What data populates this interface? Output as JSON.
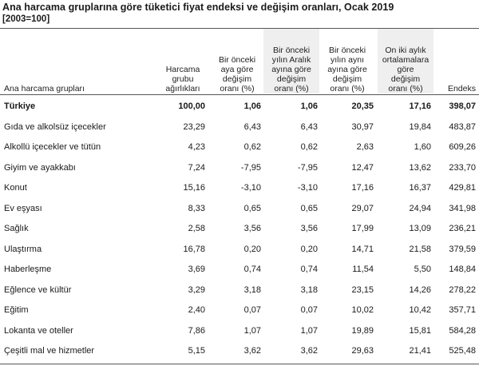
{
  "title": "Ana harcama gruplarına göre tüketici fiyat endeksi ve değişim oranları, Ocak 2019",
  "subtitle": "[2003=100]",
  "columns": [
    {
      "lines": [
        "Ana harcama grupları"
      ]
    },
    {
      "lines": [
        "Harcama",
        "grubu",
        "ağırlıkları"
      ]
    },
    {
      "lines": [
        "Bir önceki",
        "aya göre",
        "değişim",
        "oranı (%)"
      ]
    },
    {
      "lines": [
        "Bir önceki",
        "yılın Aralık",
        "ayına göre",
        "değişim",
        "oranı (%)"
      ]
    },
    {
      "lines": [
        "Bir önceki",
        "yılın aynı",
        "ayına göre",
        "değişim",
        "oranı (%)"
      ]
    },
    {
      "lines": [
        "On iki aylık",
        "ortalamalara",
        "göre",
        "değişim",
        "oranı (%)"
      ]
    },
    {
      "lines": [
        "Endeks"
      ]
    }
  ],
  "rows": [
    {
      "name": "Türkiye",
      "bold": true,
      "values": [
        "100,00",
        "1,06",
        "1,06",
        "20,35",
        "17,16",
        "398,07"
      ]
    },
    {
      "name": "Gıda ve alkolsüz içecekler",
      "values": [
        "23,29",
        "6,43",
        "6,43",
        "30,97",
        "19,84",
        "483,87"
      ]
    },
    {
      "name": "Alkollü içecekler ve tütün",
      "values": [
        "4,23",
        "0,62",
        "0,62",
        "2,63",
        "1,60",
        "609,26"
      ]
    },
    {
      "name": "Giyim ve ayakkabı",
      "values": [
        "7,24",
        "-7,95",
        "-7,95",
        "12,47",
        "13,62",
        "233,70"
      ]
    },
    {
      "name": "Konut",
      "values": [
        "15,16",
        "-3,10",
        "-3,10",
        "17,16",
        "16,37",
        "429,81"
      ]
    },
    {
      "name": "Ev eşyası",
      "values": [
        "8,33",
        "0,65",
        "0,65",
        "29,07",
        "24,94",
        "341,98"
      ]
    },
    {
      "name": "Sağlık",
      "values": [
        "2,58",
        "3,56",
        "3,56",
        "17,99",
        "13,09",
        "236,21"
      ]
    },
    {
      "name": "Ulaştırma",
      "values": [
        "16,78",
        "0,20",
        "0,20",
        "14,71",
        "21,58",
        "379,59"
      ]
    },
    {
      "name": "Haberleşme",
      "values": [
        "3,69",
        "0,74",
        "0,74",
        "11,54",
        "5,50",
        "148,84"
      ]
    },
    {
      "name": "Eğlence ve kültür",
      "values": [
        "3,29",
        "3,18",
        "3,18",
        "23,15",
        "14,26",
        "278,22"
      ]
    },
    {
      "name": "Eğitim",
      "values": [
        "2,40",
        "0,07",
        "0,07",
        "10,02",
        "10,42",
        "357,71"
      ]
    },
    {
      "name": "Lokanta ve oteller",
      "values": [
        "7,86",
        "1,07",
        "1,07",
        "19,89",
        "15,81",
        "584,28"
      ]
    },
    {
      "name": "Çeşitli mal ve hizmetler",
      "values": [
        "5,15",
        "3,62",
        "3,62",
        "29,63",
        "21,41",
        "525,48"
      ]
    }
  ]
}
